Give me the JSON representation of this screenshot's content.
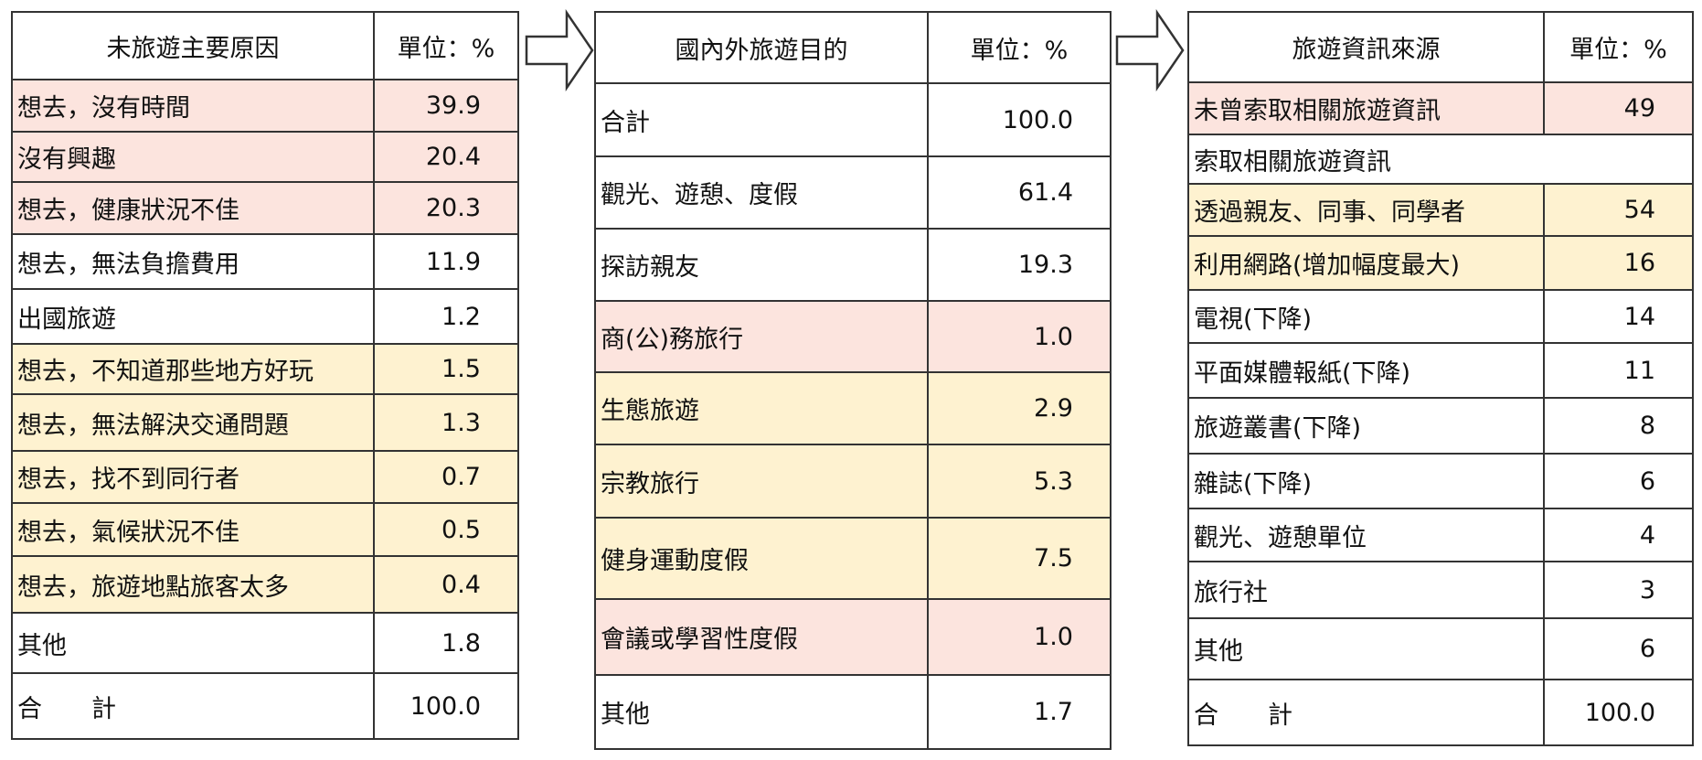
{
  "table1": {
    "header_label": "未旅遊主要原因",
    "header_unit": "單位：%",
    "rows": [
      {
        "label": "想去，沒有時間",
        "value": "39.9",
        "tone": "pink"
      },
      {
        "label": "沒有興趣",
        "value": "20.4",
        "tone": "pink"
      },
      {
        "label": "想去，健康狀況不佳",
        "value": "20.3",
        "tone": "pink"
      },
      {
        "label": "想去，無法負擔費用",
        "value": "11.9",
        "tone": "white"
      },
      {
        "label": "出國旅遊",
        "value": "1.2",
        "tone": "white"
      },
      {
        "label": "想去，不知道那些地方好玩",
        "value": "1.5",
        "tone": "yellow"
      },
      {
        "label": "想去，無法解決交通問題",
        "value": "1.3",
        "tone": "yellow"
      },
      {
        "label": "想去，找不到同行者",
        "value": "0.7",
        "tone": "yellow"
      },
      {
        "label": "想去，氣候狀況不佳",
        "value": "0.5",
        "tone": "yellow"
      },
      {
        "label": "想去，旅遊地點旅客太多",
        "value": "0.4",
        "tone": "yellow"
      },
      {
        "label": "其他",
        "value": "1.8",
        "tone": "white"
      },
      {
        "label": "合　　計",
        "value": "100.0",
        "tone": "white"
      }
    ]
  },
  "table2": {
    "header_label": "國內外旅遊目的",
    "header_unit": "單位：%",
    "rows": [
      {
        "label": "合計",
        "value": "100.0",
        "tone": "white"
      },
      {
        "label": "觀光、遊憩、度假",
        "value": "61.4",
        "tone": "white"
      },
      {
        "label": "探訪親友",
        "value": "19.3",
        "tone": "white"
      },
      {
        "label": "商(公)務旅行",
        "value": "1.0",
        "tone": "pink"
      },
      {
        "label": "生態旅遊",
        "value": "2.9",
        "tone": "yellow"
      },
      {
        "label": "宗教旅行",
        "value": "5.3",
        "tone": "yellow"
      },
      {
        "label": "健身運動度假",
        "value": "7.5",
        "tone": "yellow"
      },
      {
        "label": "會議或學習性度假",
        "value": "1.0",
        "tone": "pink"
      },
      {
        "label": "其他",
        "value": "1.7",
        "tone": "white"
      }
    ]
  },
  "table3": {
    "header_label": "旅遊資訊來源",
    "header_unit": "單位：%",
    "rows": [
      {
        "label": "未曾索取相關旅遊資訊",
        "value": "49",
        "tone": "pink"
      },
      {
        "label": "索取相關旅遊資訊",
        "value": "",
        "tone": "white",
        "span": true
      },
      {
        "label": "透過親友、同事、同學者",
        "value": "54",
        "tone": "yellow"
      },
      {
        "label": "利用網路(增加幅度最大)",
        "value": "16",
        "tone": "yellow"
      },
      {
        "label": "電視(下降)",
        "value": "14",
        "tone": "white"
      },
      {
        "label": "平面媒體報紙(下降)",
        "value": "11",
        "tone": "white"
      },
      {
        "label": "旅遊叢書(下降)",
        "value": "8",
        "tone": "white"
      },
      {
        "label": "雜誌(下降)",
        "value": "6",
        "tone": "white"
      },
      {
        "label": "觀光、遊憩單位",
        "value": "4",
        "tone": "white"
      },
      {
        "label": "旅行社",
        "value": "3",
        "tone": "white"
      },
      {
        "label": "其他",
        "value": "6",
        "tone": "white"
      },
      {
        "label": "合　　計",
        "value": "100.0",
        "tone": "white"
      }
    ]
  },
  "colors": {
    "pink": "#fce4de",
    "yellow": "#fef2d0",
    "border": "#333333"
  },
  "icons": [
    "right-arrow-icon",
    "right-arrow-icon"
  ]
}
